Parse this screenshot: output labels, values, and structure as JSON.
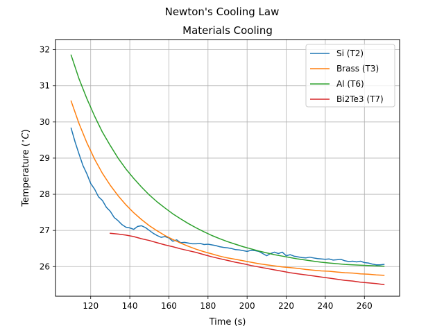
{
  "figure": {
    "suptitle": "Newton's Cooling Law"
  },
  "chart_data": {
    "type": "line",
    "title": "Materials Cooling",
    "xlabel": "Time (s)",
    "ylabel": "Temperature (",
    "ylabel_unit": "∘",
    "ylabel_unit_letter": "C",
    "ylabel_close": ")",
    "xlim": [
      102.0,
      278.0
    ],
    "ylim": [
      25.18,
      32.28
    ],
    "xticks": [
      120,
      140,
      160,
      180,
      200,
      220,
      240,
      260
    ],
    "yticks": [
      26,
      27,
      28,
      29,
      30,
      31,
      32
    ],
    "grid": true,
    "legend_position": "top-right",
    "series": [
      {
        "name": "Si (T2)",
        "color": "#1f77b4",
        "x": [
          110,
          112,
          114,
          116,
          118,
          120,
          122,
          124,
          126,
          128,
          130,
          132,
          134,
          136,
          138,
          140,
          142,
          144,
          146,
          148,
          150,
          152,
          154,
          156,
          158,
          160,
          162,
          164,
          166,
          168,
          170,
          172,
          174,
          176,
          178,
          180,
          182,
          184,
          186,
          188,
          190,
          192,
          194,
          196,
          198,
          200,
          202,
          204,
          206,
          208,
          210,
          212,
          214,
          216,
          218,
          220,
          222,
          224,
          226,
          228,
          230,
          232,
          234,
          236,
          238,
          240,
          242,
          244,
          246,
          248,
          250,
          252,
          254,
          256,
          258,
          260,
          262,
          264,
          266,
          268,
          270
        ],
        "y": [
          29.83,
          29.45,
          29.12,
          28.8,
          28.57,
          28.3,
          28.14,
          27.93,
          27.83,
          27.64,
          27.53,
          27.36,
          27.27,
          27.16,
          27.09,
          27.07,
          27.03,
          27.11,
          27.13,
          27.08,
          27.0,
          26.92,
          26.86,
          26.81,
          26.83,
          26.79,
          26.7,
          26.74,
          26.66,
          26.67,
          26.65,
          26.63,
          26.63,
          26.64,
          26.61,
          26.62,
          26.6,
          26.58,
          26.55,
          26.53,
          26.52,
          26.5,
          26.47,
          26.46,
          26.44,
          26.42,
          26.45,
          26.44,
          26.42,
          26.36,
          26.3,
          26.36,
          26.4,
          26.36,
          26.4,
          26.3,
          26.33,
          26.29,
          26.27,
          26.25,
          26.24,
          26.26,
          26.24,
          26.22,
          26.21,
          26.2,
          26.21,
          26.18,
          26.19,
          26.2,
          26.16,
          26.14,
          26.15,
          26.13,
          26.15,
          26.11,
          26.1,
          26.07,
          26.05,
          26.05,
          26.06
        ]
      },
      {
        "name": "Brass (T3)",
        "color": "#ff7f0e",
        "x": [
          110,
          114,
          118,
          122,
          126,
          130,
          134,
          138,
          142,
          146,
          150,
          154,
          158,
          162,
          166,
          170,
          174,
          178,
          182,
          186,
          190,
          194,
          198,
          202,
          206,
          210,
          214,
          218,
          222,
          226,
          230,
          234,
          238,
          242,
          246,
          250,
          254,
          258,
          262,
          266,
          270
        ],
        "y": [
          30.58,
          29.96,
          29.43,
          28.97,
          28.58,
          28.25,
          27.96,
          27.71,
          27.49,
          27.3,
          27.13,
          26.99,
          26.86,
          26.75,
          26.65,
          26.56,
          26.48,
          26.41,
          26.35,
          26.29,
          26.24,
          26.2,
          26.16,
          26.12,
          26.08,
          26.05,
          26.02,
          25.99,
          25.97,
          25.95,
          25.92,
          25.9,
          25.88,
          25.87,
          25.85,
          25.83,
          25.82,
          25.8,
          25.79,
          25.77,
          25.76
        ]
      },
      {
        "name": "Al (T6)",
        "color": "#2ca02c",
        "x": [
          110,
          114,
          118,
          122,
          126,
          130,
          134,
          138,
          142,
          146,
          150,
          154,
          158,
          162,
          166,
          170,
          174,
          178,
          182,
          186,
          190,
          194,
          198,
          202,
          206,
          210,
          214,
          218,
          222,
          226,
          230,
          234,
          238,
          242,
          246,
          250,
          254,
          258,
          262,
          266,
          270
        ],
        "y": [
          31.85,
          31.2,
          30.65,
          30.16,
          29.72,
          29.35,
          29.0,
          28.7,
          28.44,
          28.2,
          27.98,
          27.79,
          27.62,
          27.46,
          27.32,
          27.19,
          27.07,
          26.96,
          26.86,
          26.77,
          26.69,
          26.62,
          26.55,
          26.49,
          26.43,
          26.38,
          26.33,
          26.29,
          26.25,
          26.21,
          26.18,
          26.15,
          26.12,
          26.1,
          26.08,
          26.06,
          26.05,
          26.04,
          26.03,
          26.02,
          26.01
        ]
      },
      {
        "name": "Bi2Te3 (T7)",
        "color": "#d62728",
        "x": [
          130,
          134,
          138,
          142,
          146,
          150,
          154,
          158,
          162,
          166,
          170,
          174,
          178,
          182,
          186,
          190,
          194,
          198,
          202,
          206,
          210,
          214,
          218,
          222,
          226,
          230,
          234,
          238,
          242,
          246,
          250,
          254,
          258,
          262,
          266,
          270
        ],
        "y": [
          26.92,
          26.9,
          26.87,
          26.83,
          26.77,
          26.72,
          26.66,
          26.6,
          26.55,
          26.49,
          26.44,
          26.39,
          26.33,
          26.27,
          26.22,
          26.17,
          26.12,
          26.08,
          26.03,
          25.99,
          25.95,
          25.91,
          25.87,
          25.83,
          25.8,
          25.77,
          25.74,
          25.71,
          25.68,
          25.65,
          25.62,
          25.6,
          25.57,
          25.55,
          25.53,
          25.5
        ]
      }
    ]
  }
}
